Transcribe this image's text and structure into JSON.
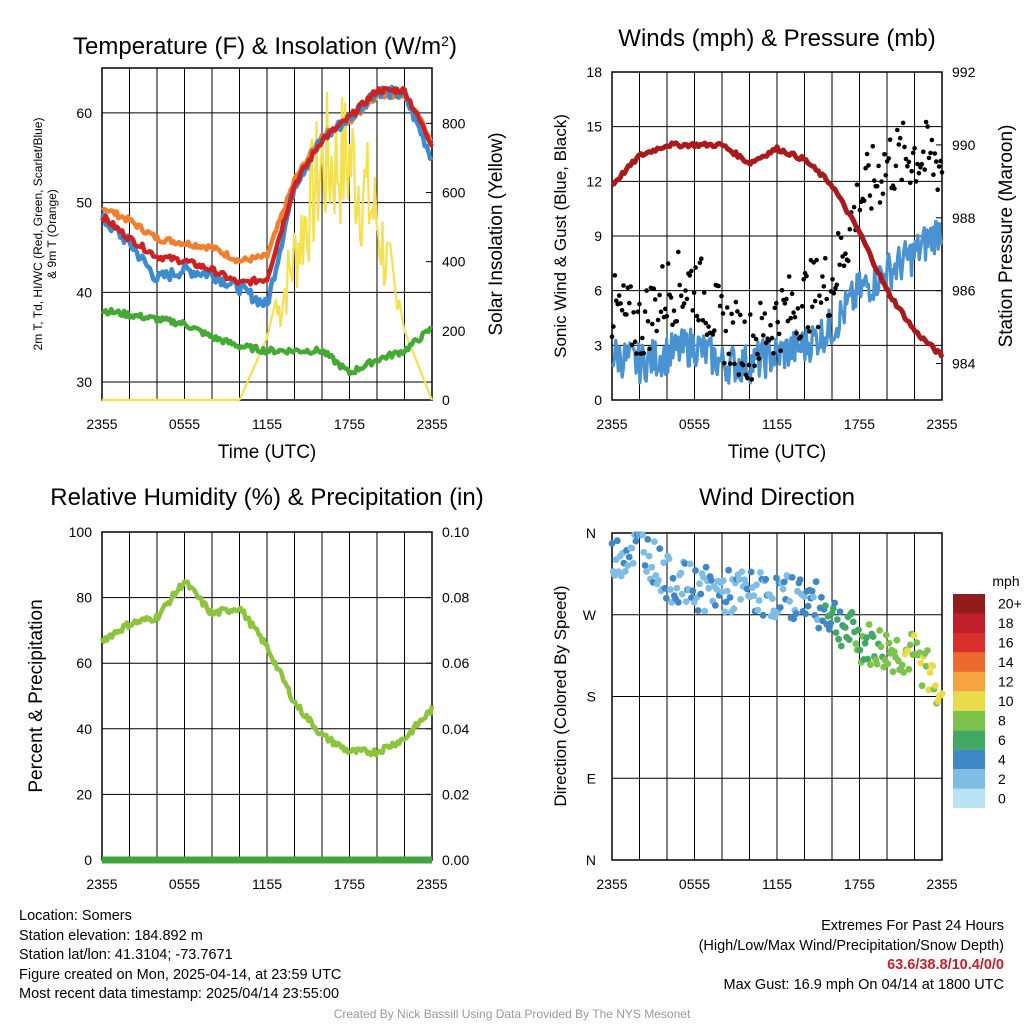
{
  "chart_data": [
    {
      "type": "line",
      "title": "Temperature (F) & Insolation (W/m2)",
      "xlabel": "Time (UTC)",
      "ylabel": "2m T, Td, HI/WC (Red, Green, Scarlet/Blue) & 9m T (Orange)",
      "ylabel_right": "Solar Insolation (Yellow)",
      "x_ticks": [
        "2355",
        "0555",
        "1155",
        "1755",
        "2355"
      ],
      "x": [
        "2355",
        "0155",
        "0355",
        "0555",
        "0755",
        "0955",
        "1155",
        "1355",
        "1555",
        "1755",
        "1955",
        "2155",
        "2355"
      ],
      "ylim": [
        28,
        65
      ],
      "y_ticks": [
        30,
        40,
        50,
        60
      ],
      "y2lim": [
        0,
        960
      ],
      "y2_ticks": [
        0,
        200,
        400,
        600,
        800
      ],
      "series": [
        {
          "name": "2m T",
          "color": "#cc2222",
          "values": [
            48.5,
            46,
            44,
            43.5,
            42.5,
            41,
            41.5,
            52,
            57,
            59.5,
            62.5,
            62.5,
            56.5
          ]
        },
        {
          "name": "9m T",
          "color": "#f08030",
          "values": [
            49.5,
            48,
            46,
            45.5,
            45,
            43.5,
            44,
            52.5,
            57.5,
            59,
            62,
            62,
            57
          ]
        },
        {
          "name": "HI/WC",
          "color": "#3b8bd0",
          "values": [
            48.2,
            45.5,
            41.5,
            42.5,
            42,
            40.5,
            38.5,
            52,
            57,
            59.5,
            62.5,
            62,
            55
          ]
        },
        {
          "name": "Td",
          "color": "#44aa33",
          "values": [
            38,
            37.5,
            37,
            36.5,
            35,
            34,
            33.5,
            33.5,
            33.5,
            31,
            32.5,
            33.5,
            36
          ]
        },
        {
          "name": "Solar Insolation",
          "color": "#f5e050",
          "axis": "right",
          "values": [
            0,
            0,
            0,
            0,
            0,
            0,
            180,
            520,
            850,
            870,
            650,
            200,
            0
          ]
        }
      ]
    },
    {
      "type": "scatter",
      "title": "Winds (mph) & Pressure (mb)",
      "xlabel": "Time (UTC)",
      "ylabel": "Sonic Wind & Gust (Blue, Black)",
      "ylabel_right": "Station Pressure (Maroon)",
      "x_ticks": [
        "2355",
        "0555",
        "1155",
        "1755",
        "2355"
      ],
      "ylim": [
        0,
        18
      ],
      "y_ticks": [
        0,
        3,
        6,
        9,
        12,
        15,
        18
      ],
      "y2lim": [
        983,
        992
      ],
      "y2_ticks": [
        984,
        986,
        988,
        990,
        992
      ],
      "x": [
        "2355",
        "0155",
        "0355",
        "0555",
        "0755",
        "0955",
        "1155",
        "1355",
        "1555",
        "1755",
        "1955",
        "2155",
        "2355"
      ],
      "series": [
        {
          "name": "Sonic Wind",
          "color": "#4a93d2",
          "values": [
            2.5,
            2,
            2.5,
            3,
            2,
            2,
            2.5,
            3,
            4,
            6,
            7,
            8,
            9.5
          ]
        },
        {
          "name": "Gust",
          "color": "#000000",
          "values": [
            5,
            4,
            6,
            6.5,
            4,
            3,
            4.5,
            5.5,
            6.5,
            11,
            13,
            13.5,
            13
          ]
        },
        {
          "name": "Station Pressure",
          "color": "#aa1a1a",
          "axis": "right",
          "values": [
            988.9,
            989.7,
            990.0,
            990.0,
            990.0,
            989.5,
            989.9,
            989.6,
            988.9,
            987.6,
            986.0,
            984.9,
            984.2
          ]
        }
      ]
    },
    {
      "type": "line",
      "title": "Relative Humidity (%) & Precipitation (in)",
      "xlabel": "",
      "ylabel": "Percent & Precipitation",
      "x_ticks": [
        "2355",
        "0555",
        "1155",
        "1755",
        "2355"
      ],
      "x": [
        "2355",
        "0155",
        "0355",
        "0555",
        "0755",
        "0955",
        "1155",
        "1355",
        "1555",
        "1755",
        "1955",
        "2155",
        "2355"
      ],
      "ylim": [
        0,
        100
      ],
      "y_ticks": [
        0,
        20,
        40,
        60,
        80,
        100
      ],
      "y2lim": [
        0,
        0.1
      ],
      "y2_ticks": [
        "0.00",
        "0.02",
        "0.04",
        "0.06",
        "0.08",
        "0.10"
      ],
      "series": [
        {
          "name": "Relative Humidity",
          "color": "#8cc43e",
          "values": [
            67,
            72,
            74,
            85,
            75,
            77,
            65,
            48,
            38,
            33,
            33,
            37,
            46
          ]
        },
        {
          "name": "Precipitation",
          "color": "#3fa63f",
          "axis": "right",
          "values": [
            0,
            0,
            0,
            0,
            0,
            0,
            0,
            0,
            0,
            0,
            0,
            0,
            0
          ]
        }
      ]
    },
    {
      "type": "scatter",
      "title": "Wind Direction",
      "xlabel": "",
      "ylabel": "Direction (Colored By Speed)",
      "x_ticks": [
        "2355",
        "0555",
        "1155",
        "1755",
        "2355"
      ],
      "y_ticks": [
        "N",
        "E",
        "S",
        "W",
        "N"
      ],
      "ylim": [
        0,
        360
      ],
      "x": [
        "2355",
        "0155",
        "0355",
        "0555",
        "0755",
        "0955",
        "1155",
        "1355",
        "1555",
        "1755",
        "1955",
        "2155",
        "2355"
      ],
      "values": [
        330,
        350,
        310,
        300,
        295,
        295,
        290,
        290,
        270,
        240,
        230,
        225,
        190
      ],
      "color_scale": {
        "label": "mph",
        "levels": [
          "0",
          "2",
          "4",
          "6",
          "8",
          "10",
          "12",
          "14",
          "16",
          "18",
          "20+"
        ],
        "colors": [
          "#b8e3f4",
          "#80bde5",
          "#3f88c5",
          "#44a865",
          "#7cc24b",
          "#e8dc4a",
          "#f5a340",
          "#ec6a2e",
          "#d9302c",
          "#c1202a",
          "#921c1c"
        ]
      }
    }
  ],
  "info": {
    "location": "Location: Somers",
    "elevation": "Station elevation: 184.892 m",
    "latlon": "Station lat/lon: 41.3104; -73.7671",
    "created": "Figure created on Mon, 2025-04-14, at 23:59 UTC",
    "recent": "Most recent data timestamp: 2025/04/14 23:55:00",
    "extremes_title": "Extremes For Past 24 Hours",
    "extremes_desc": "(High/Low/Max Wind/Precipitation/Snow Depth)",
    "extremes_values": "63.6/38.8/10.4/0/0",
    "max_gust": "Max Gust: 16.9 mph On 04/14 at 1800 UTC",
    "credit": "Created By Nick Bassill Using Data Provided By The NYS Mesonet"
  }
}
